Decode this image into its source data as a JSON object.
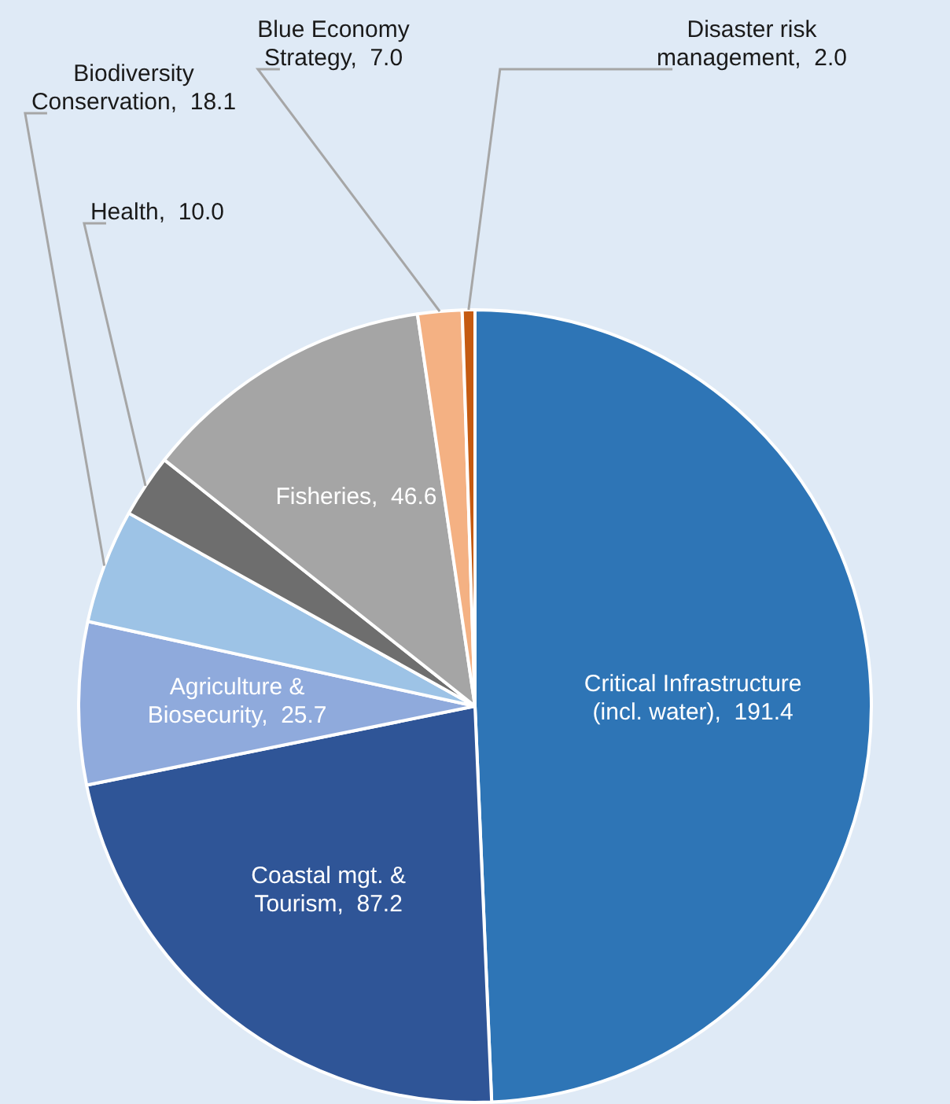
{
  "chart_data": {
    "type": "pie",
    "categories": [
      "Critical Infrastructure (incl. water)",
      "Coastal mgt. & Tourism",
      "Agriculture & Biosecurity",
      "Biodiversity Conservation",
      "Health",
      "Fisheries",
      "Blue Economy Strategy",
      "Disaster risk management"
    ],
    "values": [
      191.4,
      87.2,
      25.7,
      18.1,
      10.0,
      46.6,
      7.0,
      2.0
    ],
    "value_labels": [
      "191.4",
      "87.2",
      "25.7",
      "18.1",
      "10.0",
      "46.6",
      "7.0",
      "2.0"
    ],
    "colors": [
      "#2e75b6",
      "#2f5597",
      "#8faadc",
      "#9dc3e6",
      "#6e6e6e",
      "#a5a5a5",
      "#f4b183",
      "#c55a11"
    ],
    "legend": false
  }
}
